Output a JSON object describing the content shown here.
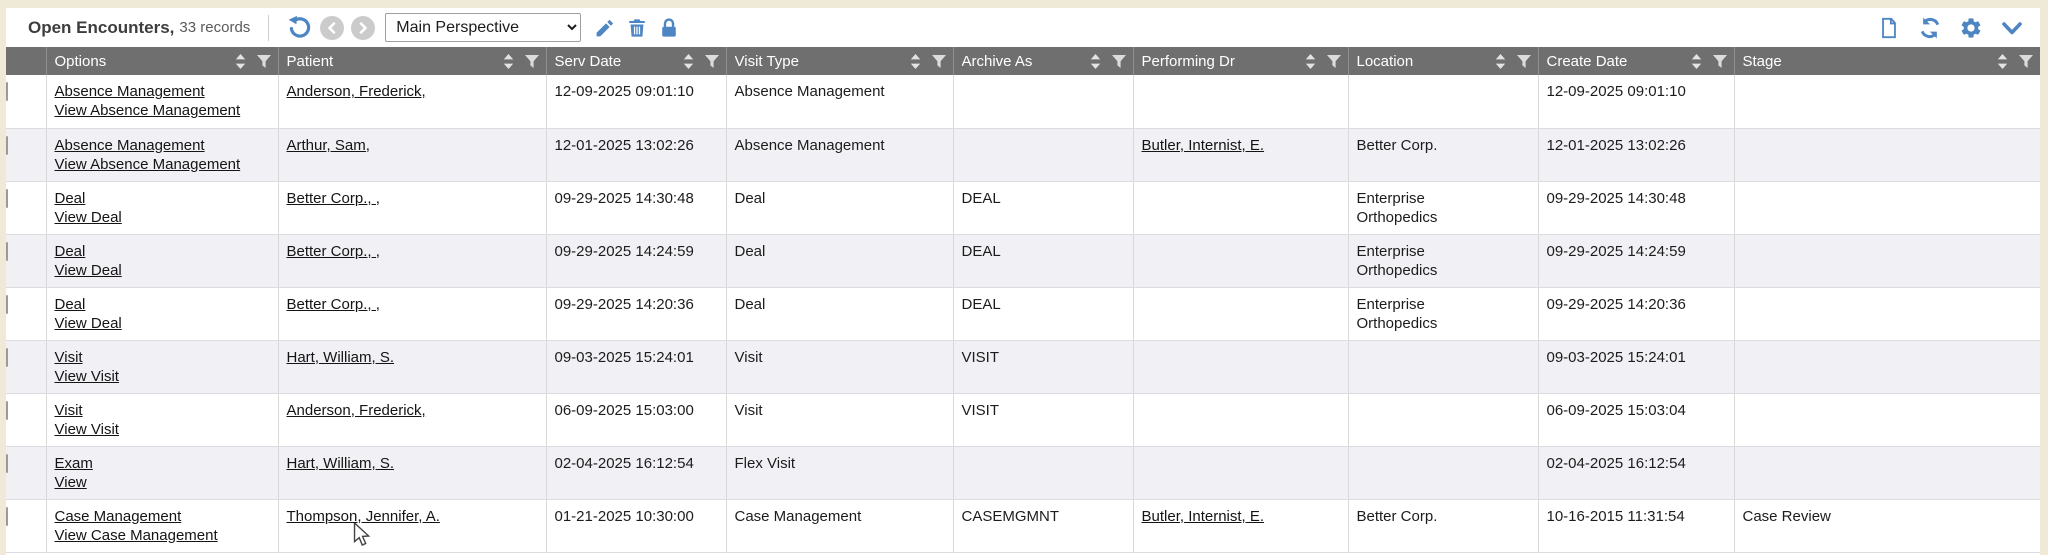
{
  "colors": {
    "accent_blue": "#4e86c4",
    "header_bg": "#6f6f6f",
    "alt_row": "#f1f1f5",
    "frame_beige": "#efe9d8"
  },
  "toolbar": {
    "title": "Open Encounters,",
    "record_count": "33 records",
    "perspective": {
      "selected": "Main Perspective",
      "options": [
        "Main Perspective"
      ]
    }
  },
  "table": {
    "columns": [
      {
        "key": "select",
        "label": ""
      },
      {
        "key": "options",
        "label": "Options"
      },
      {
        "key": "patient",
        "label": "Patient"
      },
      {
        "key": "serv_date",
        "label": "Serv Date"
      },
      {
        "key": "visit_type",
        "label": "Visit Type"
      },
      {
        "key": "archive_as",
        "label": "Archive As"
      },
      {
        "key": "performing_dr",
        "label": "Performing Dr"
      },
      {
        "key": "location",
        "label": "Location"
      },
      {
        "key": "create_date",
        "label": "Create Date"
      },
      {
        "key": "stage",
        "label": "Stage"
      }
    ],
    "rows": [
      {
        "options": [
          "Absence Management",
          "View Absence Management"
        ],
        "patient": "Anderson, Frederick,",
        "serv_date": "12-09-2025 09:01:10",
        "visit_type": "Absence Management",
        "archive_as": "",
        "performing_dr": "",
        "location": "",
        "create_date": "12-09-2025 09:01:10",
        "stage": ""
      },
      {
        "options": [
          "Absence Management",
          "View Absence Management"
        ],
        "patient": "Arthur, Sam,",
        "serv_date": "12-01-2025 13:02:26",
        "visit_type": "Absence Management",
        "archive_as": "",
        "performing_dr": "Butler, Internist, E.",
        "location": "Better Corp.",
        "create_date": "12-01-2025 13:02:26",
        "stage": ""
      },
      {
        "options": [
          "Deal",
          "View Deal"
        ],
        "patient": "Better Corp., ,",
        "serv_date": "09-29-2025 14:30:48",
        "visit_type": "Deal",
        "archive_as": "DEAL",
        "performing_dr": "",
        "location": "Enterprise Orthopedics",
        "create_date": "09-29-2025 14:30:48",
        "stage": ""
      },
      {
        "options": [
          "Deal",
          "View Deal"
        ],
        "patient": "Better Corp., ,",
        "serv_date": "09-29-2025 14:24:59",
        "visit_type": "Deal",
        "archive_as": "DEAL",
        "performing_dr": "",
        "location": "Enterprise Orthopedics",
        "create_date": "09-29-2025 14:24:59",
        "stage": ""
      },
      {
        "options": [
          "Deal",
          "View Deal"
        ],
        "patient": "Better Corp., ,",
        "serv_date": "09-29-2025 14:20:36",
        "visit_type": "Deal",
        "archive_as": "DEAL",
        "performing_dr": "",
        "location": "Enterprise Orthopedics",
        "create_date": "09-29-2025 14:20:36",
        "stage": ""
      },
      {
        "options": [
          "Visit",
          "View Visit"
        ],
        "patient": "Hart, William, S.",
        "serv_date": "09-03-2025 15:24:01",
        "visit_type": "Visit",
        "archive_as": "VISIT",
        "performing_dr": "",
        "location": "",
        "create_date": "09-03-2025 15:24:01",
        "stage": ""
      },
      {
        "options": [
          "Visit",
          "View Visit"
        ],
        "patient": "Anderson, Frederick,",
        "serv_date": "06-09-2025 15:03:00",
        "visit_type": "Visit",
        "archive_as": "VISIT",
        "performing_dr": "",
        "location": "",
        "create_date": "06-09-2025 15:03:04",
        "stage": ""
      },
      {
        "options": [
          "Exam",
          "View"
        ],
        "patient": "Hart, William, S.",
        "serv_date": "02-04-2025 16:12:54",
        "visit_type": "Flex Visit",
        "archive_as": "",
        "performing_dr": "",
        "location": "",
        "create_date": "02-04-2025 16:12:54",
        "stage": ""
      },
      {
        "options": [
          "Case Management",
          "View Case Management"
        ],
        "patient": "Thompson, Jennifer, A.",
        "serv_date": "01-21-2025 10:30:00",
        "visit_type": "Case Management",
        "archive_as": "CASEMGMNT",
        "performing_dr": "Butler, Internist, E.",
        "location": "Better Corp.",
        "create_date": "10-16-2015 11:31:54",
        "stage": "Case Review"
      }
    ]
  }
}
